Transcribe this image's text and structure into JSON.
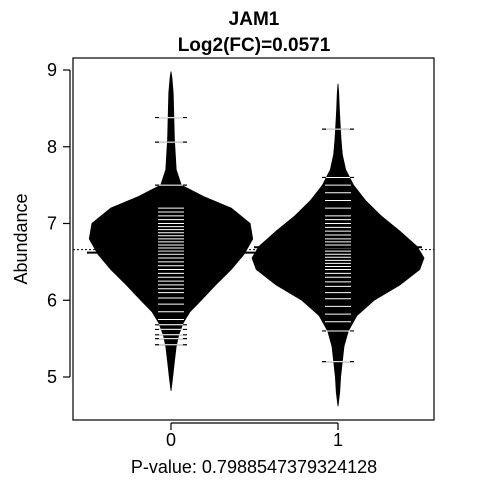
{
  "chart_data": {
    "type": "beanplot",
    "title": "JAM1",
    "subtitle": "Log2(FC)=0.0571",
    "xlabel": "P-value: 0.798854737932412​8",
    "ylabel": "Abundance",
    "categories": [
      "0",
      "1"
    ],
    "yticks": [
      5,
      6,
      7,
      8,
      9
    ],
    "ylim": [
      4.45,
      9.2
    ],
    "overall_mean": 6.66,
    "groups": [
      {
        "name": "0",
        "mean": 6.62,
        "density": [
          [
            4.82,
            0.0
          ],
          [
            5.0,
            0.02
          ],
          [
            5.2,
            0.04
          ],
          [
            5.4,
            0.06
          ],
          [
            5.55,
            0.09
          ],
          [
            5.7,
            0.14
          ],
          [
            5.85,
            0.22
          ],
          [
            6.0,
            0.35
          ],
          [
            6.2,
            0.52
          ],
          [
            6.4,
            0.7
          ],
          [
            6.6,
            0.85
          ],
          [
            6.8,
            0.95
          ],
          [
            7.0,
            0.92
          ],
          [
            7.2,
            0.7
          ],
          [
            7.35,
            0.38
          ],
          [
            7.5,
            0.12
          ],
          [
            7.7,
            0.06
          ],
          [
            7.9,
            0.05
          ],
          [
            8.1,
            0.04
          ],
          [
            8.3,
            0.035
          ],
          [
            8.5,
            0.03
          ],
          [
            8.7,
            0.025
          ],
          [
            8.9,
            0.01
          ],
          [
            8.98,
            0.0
          ]
        ],
        "observations": [
          5.42,
          5.5,
          5.55,
          5.62,
          5.68,
          5.75,
          5.85,
          5.95,
          6.03,
          6.1,
          6.15,
          6.2,
          6.25,
          6.3,
          6.35,
          6.4,
          6.45,
          6.5,
          6.55,
          6.6,
          6.64,
          6.68,
          6.72,
          6.76,
          6.8,
          6.84,
          6.88,
          6.92,
          6.96,
          7.0,
          7.05,
          7.1,
          7.15,
          7.2,
          7.5,
          8.06,
          8.38
        ]
      },
      {
        "name": "1",
        "mean": 6.69,
        "density": [
          [
            4.62,
            0.0
          ],
          [
            4.8,
            0.02
          ],
          [
            5.0,
            0.03
          ],
          [
            5.2,
            0.05
          ],
          [
            5.4,
            0.07
          ],
          [
            5.6,
            0.12
          ],
          [
            5.8,
            0.22
          ],
          [
            6.0,
            0.42
          ],
          [
            6.2,
            0.72
          ],
          [
            6.4,
            0.95
          ],
          [
            6.55,
            1.0
          ],
          [
            6.7,
            0.92
          ],
          [
            6.9,
            0.72
          ],
          [
            7.1,
            0.5
          ],
          [
            7.3,
            0.32
          ],
          [
            7.5,
            0.18
          ],
          [
            7.7,
            0.09
          ],
          [
            7.9,
            0.05
          ],
          [
            8.1,
            0.035
          ],
          [
            8.3,
            0.025
          ],
          [
            8.5,
            0.015
          ],
          [
            8.7,
            0.008
          ],
          [
            8.82,
            0.0
          ]
        ],
        "observations": [
          5.2,
          5.6,
          5.72,
          5.82,
          5.92,
          6.02,
          6.1,
          6.18,
          6.24,
          6.3,
          6.35,
          6.4,
          6.44,
          6.48,
          6.52,
          6.56,
          6.6,
          6.64,
          6.68,
          6.72,
          6.76,
          6.8,
          6.85,
          6.9,
          6.95,
          7.0,
          7.05,
          7.1,
          7.2,
          7.3,
          7.4,
          7.5,
          7.6,
          8.23
        ]
      }
    ],
    "grid": false,
    "legend": "none"
  }
}
